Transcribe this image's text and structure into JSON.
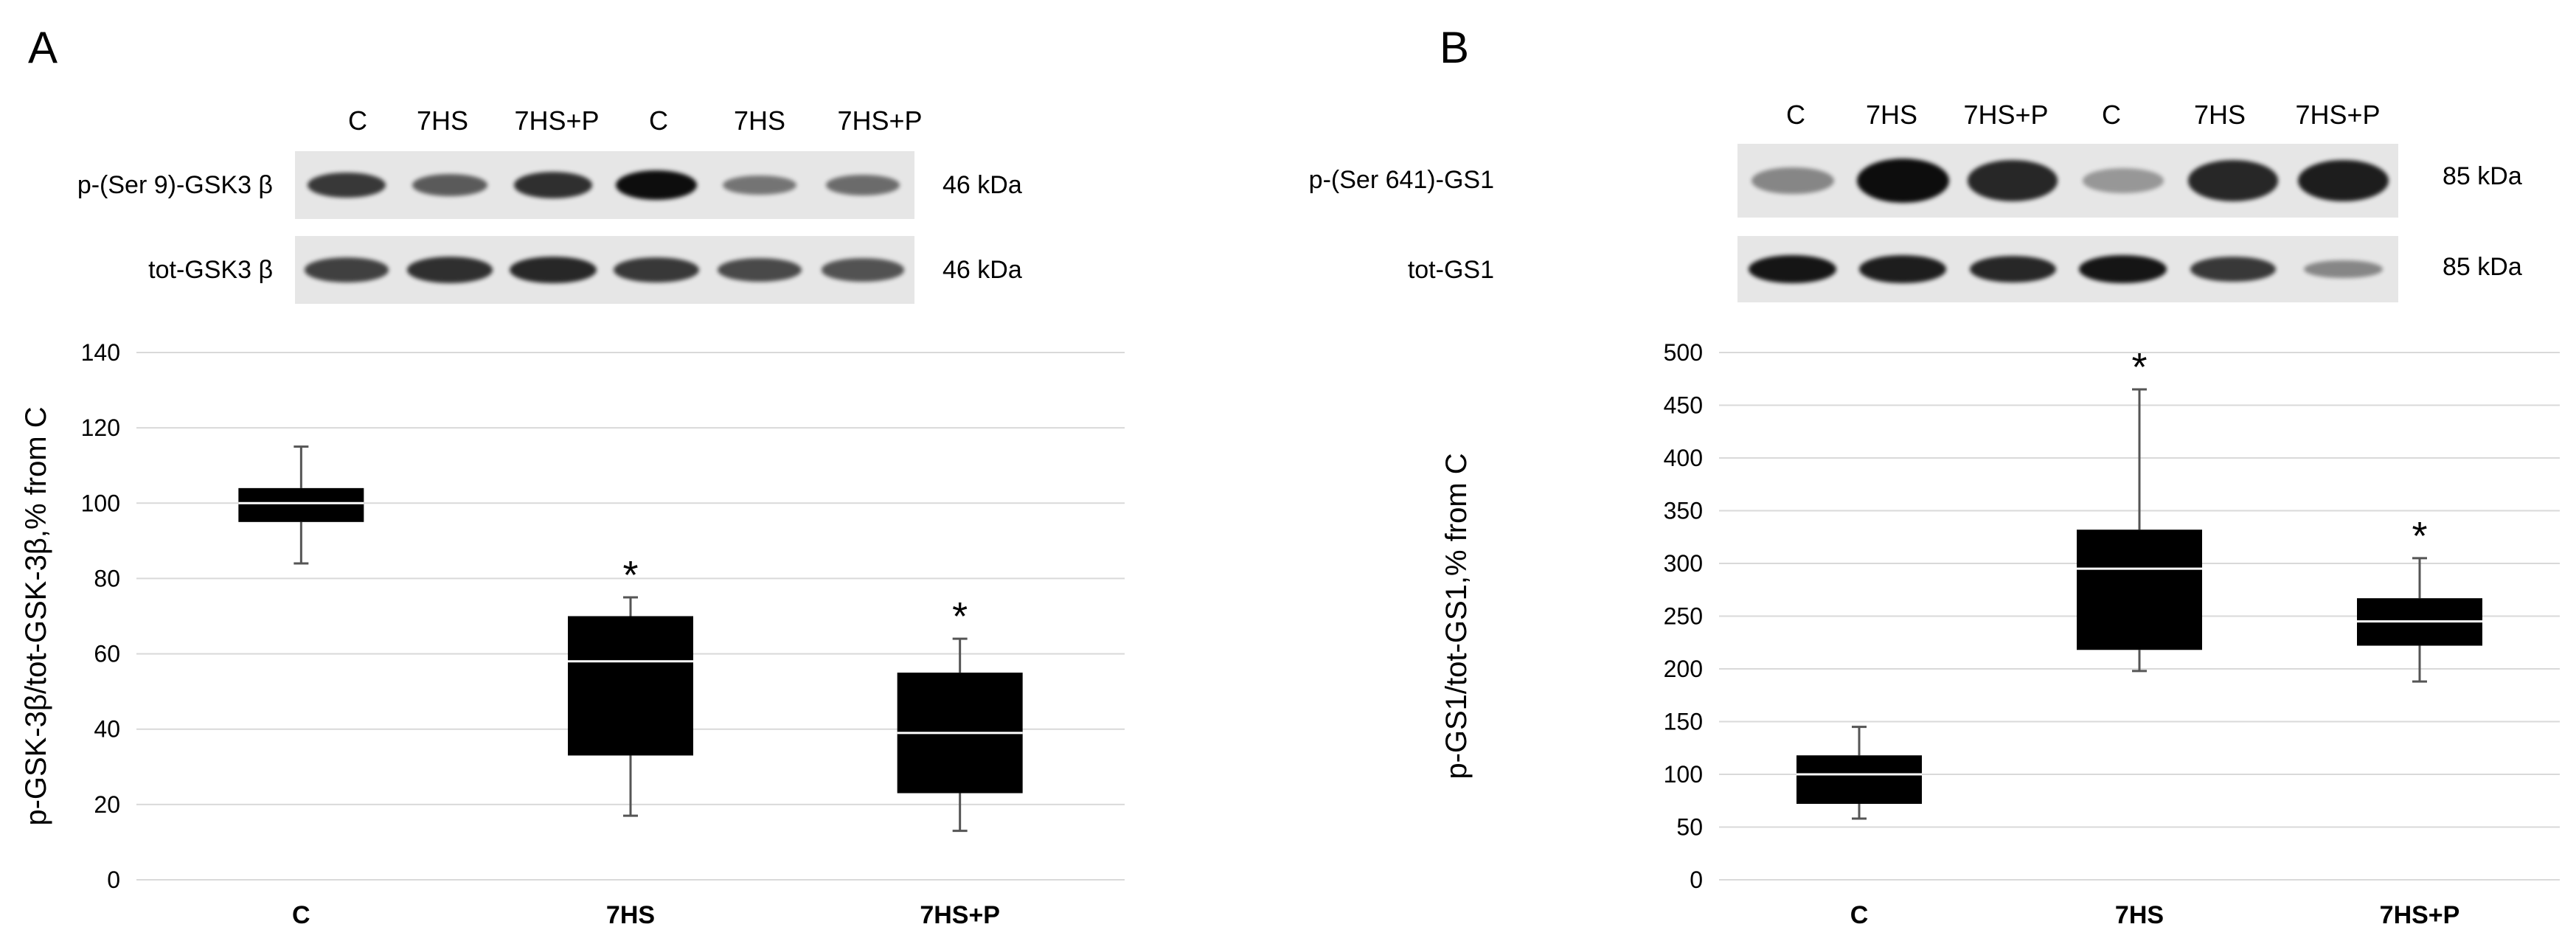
{
  "panels": [
    {
      "letter": "A",
      "lanes": [
        "C",
        "7HS",
        "7HS+P",
        "C",
        "7HS",
        "7HS+P"
      ],
      "blots": [
        {
          "label": "p-(Ser 9)-GSK3 β",
          "kda": "46 kDa",
          "intensities": [
            0.75,
            0.55,
            0.8,
            1.0,
            0.4,
            0.45
          ]
        },
        {
          "label": "tot-GSK3 β",
          "kda": "46 kDa",
          "intensities": [
            0.7,
            0.8,
            0.85,
            0.75,
            0.65,
            0.6
          ]
        }
      ]
    },
    {
      "letter": "B",
      "lanes": [
        "C",
        "7HS",
        "7HS+P",
        "C",
        "7HS",
        "7HS+P"
      ],
      "blots": [
        {
          "label": "p-(Ser 641)-GS1",
          "kda": "85 kDa",
          "intensities": [
            0.3,
            1.0,
            0.85,
            0.2,
            0.85,
            0.9
          ]
        },
        {
          "label": "tot-GS1",
          "kda": "85 kDa",
          "intensities": [
            0.95,
            0.9,
            0.85,
            0.95,
            0.75,
            0.3
          ]
        }
      ]
    }
  ],
  "chart_data": [
    {
      "type": "box",
      "panel": "A",
      "ylabel": "p-GSK-3β/tot-GSK-3β,% from C",
      "ylim": [
        0,
        140
      ],
      "yticks": [
        0,
        20,
        40,
        60,
        80,
        100,
        120,
        140
      ],
      "grid": true,
      "categories": [
        "C",
        "7HS",
        "7HS+P"
      ],
      "boxes": [
        {
          "min": 84,
          "q1": 95,
          "median": 100,
          "q3": 104,
          "max": 115,
          "mark": ""
        },
        {
          "min": 17,
          "q1": 33,
          "median": 58,
          "q3": 70,
          "max": 75,
          "mark": "*"
        },
        {
          "min": 13,
          "q1": 23,
          "median": 39,
          "q3": 55,
          "max": 64,
          "mark": "*"
        }
      ]
    },
    {
      "type": "box",
      "panel": "B",
      "ylabel": "p-GS1/tot-GS1,% from C",
      "ylim": [
        0,
        500
      ],
      "yticks": [
        0,
        50,
        100,
        150,
        200,
        250,
        300,
        350,
        400,
        450,
        500
      ],
      "grid": true,
      "categories": [
        "C",
        "7HS",
        "7HS+P"
      ],
      "boxes": [
        {
          "min": 58,
          "q1": 72,
          "median": 100,
          "q3": 118,
          "max": 145,
          "mark": ""
        },
        {
          "min": 198,
          "q1": 218,
          "median": 295,
          "q3": 332,
          "max": 465,
          "mark": "*"
        },
        {
          "min": 188,
          "q1": 222,
          "median": 245,
          "q3": 267,
          "max": 305,
          "mark": "*"
        }
      ]
    }
  ]
}
